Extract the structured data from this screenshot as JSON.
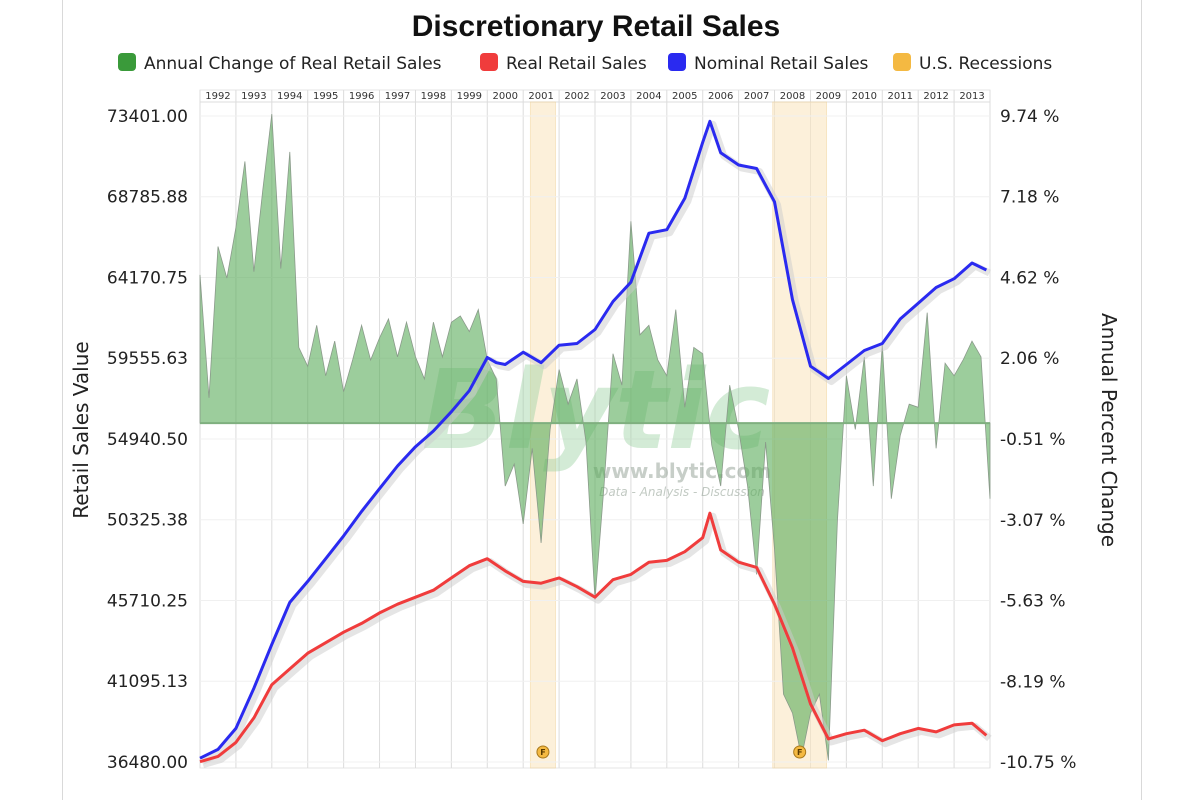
{
  "chart_data": {
    "type": "line",
    "title": "Discretionary Retail Sales",
    "legend": {
      "placement": "top",
      "items": [
        {
          "label": "Annual Change of Real Retail Sales",
          "color": "#3a9a3a"
        },
        {
          "label": "Real Retail Sales",
          "color": "#f03c3c"
        },
        {
          "label": "Nominal Retail Sales",
          "color": "#2a2af0"
        },
        {
          "label": "U.S. Recessions",
          "color": "#f4b942"
        }
      ]
    },
    "y_left": {
      "label": "Retail Sales Value",
      "range": [
        36480.0,
        73401.0
      ],
      "ticks": [
        "73401.00",
        "68785.88",
        "64170.75",
        "59555.63",
        "54940.50",
        "50325.38",
        "45710.25",
        "41095.13",
        "36480.00"
      ]
    },
    "y_right": {
      "label": "Annual Percent Change",
      "range": [
        -10.75,
        9.74
      ],
      "ticks": [
        "9.74 %",
        "7.18 %",
        "4.62 %",
        "2.06 %",
        "-0.51 %",
        "-3.07 %",
        "-5.63 %",
        "-8.19 %",
        "-10.75 %"
      ]
    },
    "x_axis": {
      "range": [
        1992.0,
        2014.0
      ],
      "year_labels": [
        "1992",
        "1993",
        "1994",
        "1995",
        "1996",
        "1997",
        "1998",
        "1999",
        "2000",
        "2001",
        "2002",
        "2003",
        "2004",
        "2005",
        "2006",
        "2007",
        "2008",
        "2009",
        "2010",
        "2011",
        "2012",
        "2013"
      ]
    },
    "recessions": [
      {
        "start": 2001.2,
        "end": 2001.9,
        "marker": "F"
      },
      {
        "start": 2007.95,
        "end": 2009.45,
        "marker": "F"
      }
    ],
    "series": [
      {
        "name": "Nominal Retail Sales",
        "axis": "left",
        "color": "#2a2af0",
        "x": [
          1992.0,
          1992.5,
          1993.0,
          1993.5,
          1994.0,
          1994.5,
          1995.0,
          1995.5,
          1996.0,
          1996.5,
          1997.0,
          1997.5,
          1998.0,
          1998.5,
          1999.0,
          1999.5,
          2000.0,
          2000.25,
          2000.5,
          2001.0,
          2001.5,
          2002.0,
          2002.5,
          2003.0,
          2003.5,
          2004.0,
          2004.5,
          2005.0,
          2005.5,
          2006.0,
          2006.2,
          2006.5,
          2007.0,
          2007.5,
          2008.0,
          2008.5,
          2009.0,
          2009.5,
          2010.0,
          2010.5,
          2011.0,
          2011.5,
          2012.0,
          2012.5,
          2013.0,
          2013.5,
          2013.9
        ],
        "y": [
          36700,
          37200,
          38400,
          40700,
          43200,
          45600,
          46800,
          48100,
          49400,
          50800,
          52100,
          53400,
          54500,
          55400,
          56500,
          57700,
          59600,
          59300,
          59200,
          59900,
          59300,
          60300,
          60400,
          61200,
          62800,
          63900,
          66700,
          66900,
          68700,
          71900,
          73100,
          71300,
          70600,
          70400,
          68500,
          62900,
          59100,
          58400,
          59200,
          60000,
          60400,
          61800,
          62700,
          63600,
          64100,
          65000,
          64600
        ]
      },
      {
        "name": "Real Retail Sales",
        "axis": "left",
        "color": "#f03c3c",
        "x": [
          1992.0,
          1992.5,
          1993.0,
          1993.5,
          1994.0,
          1994.5,
          1995.0,
          1995.5,
          1996.0,
          1996.5,
          1997.0,
          1997.5,
          1998.0,
          1998.5,
          1999.0,
          1999.5,
          2000.0,
          2000.5,
          2001.0,
          2001.5,
          2002.0,
          2002.5,
          2003.0,
          2003.5,
          2004.0,
          2004.5,
          2005.0,
          2005.5,
          2006.0,
          2006.2,
          2006.5,
          2007.0,
          2007.5,
          2008.0,
          2008.5,
          2009.0,
          2009.5,
          2010.0,
          2010.5,
          2011.0,
          2011.5,
          2012.0,
          2012.5,
          2013.0,
          2013.5,
          2013.9
        ],
        "y": [
          36500,
          36800,
          37600,
          39000,
          40900,
          41800,
          42700,
          43300,
          43900,
          44400,
          45000,
          45500,
          45900,
          46300,
          47000,
          47700,
          48100,
          47400,
          46800,
          46700,
          47000,
          46500,
          45900,
          46900,
          47200,
          47900,
          48000,
          48500,
          49300,
          50700,
          48600,
          47900,
          47600,
          45500,
          43000,
          39800,
          37800,
          38100,
          38300,
          37700,
          38100,
          38400,
          38200,
          38600,
          38700,
          38000
        ]
      },
      {
        "name": "Annual Change of Real Retail Sales",
        "axis": "right",
        "type": "area",
        "color": "#3a9a3a",
        "x": [
          1992.0,
          1992.25,
          1992.5,
          1992.75,
          1993.0,
          1993.25,
          1993.5,
          1993.75,
          1994.0,
          1994.25,
          1994.5,
          1994.75,
          1995.0,
          1995.25,
          1995.5,
          1995.75,
          1996.0,
          1996.25,
          1996.5,
          1996.75,
          1997.0,
          1997.25,
          1997.5,
          1997.75,
          1998.0,
          1998.25,
          1998.5,
          1998.75,
          1999.0,
          1999.25,
          1999.5,
          1999.75,
          2000.0,
          2000.25,
          2000.5,
          2000.75,
          2001.0,
          2001.25,
          2001.5,
          2001.75,
          2002.0,
          2002.25,
          2002.5,
          2002.75,
          2003.0,
          2003.25,
          2003.5,
          2003.75,
          2004.0,
          2004.25,
          2004.5,
          2004.75,
          2005.0,
          2005.25,
          2005.5,
          2005.75,
          2006.0,
          2006.25,
          2006.5,
          2006.75,
          2007.0,
          2007.25,
          2007.5,
          2007.75,
          2008.0,
          2008.25,
          2008.5,
          2008.75,
          2009.0,
          2009.25,
          2009.5,
          2009.75,
          2010.0,
          2010.25,
          2010.5,
          2010.75,
          2011.0,
          2011.25,
          2011.5,
          2011.75,
          2012.0,
          2012.25,
          2012.5,
          2012.75,
          2013.0,
          2013.25,
          2013.5,
          2013.75,
          2014.0
        ],
        "y": [
          4.7,
          0.8,
          5.6,
          4.6,
          6.2,
          8.3,
          4.8,
          7.4,
          9.8,
          4.9,
          8.6,
          2.4,
          1.8,
          3.1,
          1.5,
          2.6,
          1.0,
          2.0,
          3.1,
          2.0,
          2.7,
          3.3,
          2.1,
          3.2,
          2.1,
          1.4,
          3.2,
          2.1,
          3.2,
          3.4,
          2.9,
          3.6,
          2.0,
          1.4,
          -2.0,
          -1.3,
          -3.2,
          -0.8,
          -3.8,
          -0.2,
          1.7,
          0.6,
          1.4,
          -0.6,
          -5.6,
          -2.0,
          2.2,
          1.2,
          6.4,
          2.8,
          3.1,
          2.0,
          1.5,
          3.6,
          0.5,
          2.4,
          2.2,
          -0.7,
          -2.0,
          1.2,
          -0.2,
          -2.0,
          -4.8,
          -0.6,
          -4.0,
          -8.6,
          -9.2,
          -10.6,
          -9.2,
          -8.6,
          -10.7,
          -3.1,
          1.5,
          -0.2,
          2.1,
          -2.0,
          2.5,
          -2.4,
          -0.4,
          0.6,
          0.5,
          3.5,
          -0.8,
          1.9,
          1.5,
          2.0,
          2.6,
          2.1,
          -2.4
        ]
      }
    ],
    "watermark": {
      "brand": "Blytic",
      "url": "www.blytic.com",
      "tagline": "Data - Analysis - Discussion"
    }
  }
}
